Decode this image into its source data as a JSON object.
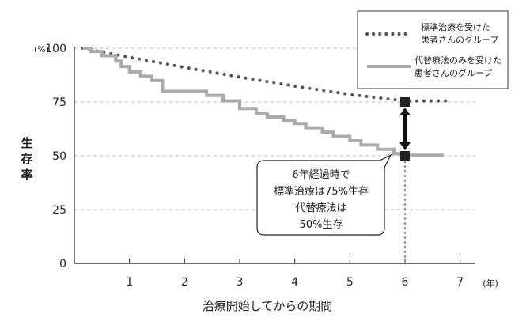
{
  "chart_data": {
    "type": "line",
    "xlabel": "治療開始してからの期間",
    "ylabel": "生存率",
    "x_unit": "(年)",
    "y_unit": "(%)",
    "xlim": [
      0,
      7.5
    ],
    "ylim": [
      0,
      100
    ],
    "x_ticks": [
      1,
      2,
      3,
      4,
      5,
      6,
      7
    ],
    "y_ticks": [
      0,
      25,
      50,
      75,
      100
    ],
    "grid": "horizontal dashed",
    "legend_position": "top-right",
    "series": [
      {
        "name": "標準治療を受けた患者さんのグループ",
        "legend_lines": [
          "標準治療を受けた",
          "患者さんのグループ"
        ],
        "style": "dotted",
        "color": "#555555",
        "x": [
          0.15,
          1,
          2,
          3,
          4,
          5,
          6,
          6.8
        ],
        "values": [
          100,
          95.8,
          91.1,
          86.6,
          82.4,
          78.5,
          75.5,
          75.5
        ]
      },
      {
        "name": "代替療法のみを受けた患者さんのグループ",
        "legend_lines": [
          "代替療法のみを受けた",
          "患者さんのグループ"
        ],
        "style": "step",
        "color": "#aaaaaa",
        "x": [
          0.15,
          0.3,
          0.5,
          0.75,
          0.85,
          1,
          1.2,
          1.4,
          1.6,
          2,
          2.4,
          2.7,
          3,
          3.3,
          3.5,
          3.8,
          4.0,
          4.2,
          4.5,
          4.7,
          5.0,
          5.2,
          5.5,
          5.8,
          6.0,
          6.7
        ],
        "values": [
          100,
          98.5,
          96.5,
          94,
          91.5,
          89,
          87,
          85,
          80,
          80,
          78,
          75.5,
          72,
          69.5,
          68,
          66.5,
          65,
          63,
          61,
          59,
          57,
          55,
          53,
          51,
          50.3,
          50.3
        ]
      }
    ],
    "markers": [
      {
        "x": 6,
        "y": 75
      },
      {
        "x": 6,
        "y": 50
      }
    ],
    "annotation": {
      "lines": [
        "6年経過時で",
        "標準治療は75%生存",
        "代替療法は",
        "50%生存"
      ]
    }
  }
}
